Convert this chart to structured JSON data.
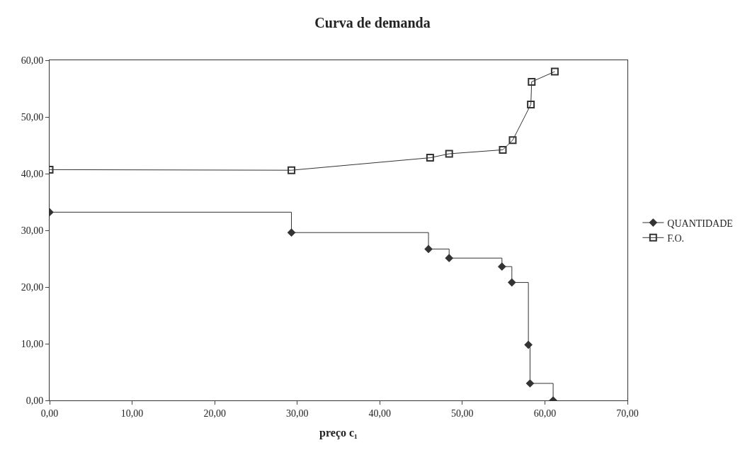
{
  "chart_data": {
    "type": "step",
    "title": "Curva de demanda",
    "xlabel": "preço c₁",
    "series": [
      {
        "name": "QUANTIDADE",
        "marker": "diamond",
        "color": "#333333",
        "x": [
          0,
          29.3,
          45.9,
          48.4,
          54.8,
          56.0,
          58.0,
          58.2,
          61.0
        ],
        "values": [
          33.2,
          29.6,
          26.7,
          25.1,
          23.6,
          20.8,
          9.8,
          3.0,
          0
        ]
      },
      {
        "name": "F.O.",
        "type": "line",
        "marker": "square",
        "color": "#333333",
        "x": [
          0,
          29.3,
          46.1,
          48.4,
          54.9,
          56.1,
          58.3,
          58.4,
          61.2
        ],
        "values": [
          40.7,
          40.6,
          42.8,
          43.5,
          44.2,
          45.9,
          52.2,
          56.2,
          58.0
        ]
      }
    ],
    "xlim": [
      0,
      70
    ],
    "ylim": [
      0,
      60
    ],
    "xticks": [
      {
        "value": 0,
        "label": "0,00"
      },
      {
        "value": 10,
        "label": "10,00"
      },
      {
        "value": 20,
        "label": "20,00"
      },
      {
        "value": 30,
        "label": "30,00"
      },
      {
        "value": 40,
        "label": "40,00"
      },
      {
        "value": 50,
        "label": "50,00"
      },
      {
        "value": 60,
        "label": "60,00"
      },
      {
        "value": 70,
        "label": "70,00"
      }
    ],
    "yticks": [
      {
        "value": 0,
        "label": "0,00"
      },
      {
        "value": 10,
        "label": "10,00"
      },
      {
        "value": 20,
        "label": "20,00"
      },
      {
        "value": 30,
        "label": "30,00"
      },
      {
        "value": 40,
        "label": "40,00"
      },
      {
        "value": 50,
        "label": "50,00"
      },
      {
        "value": 60,
        "label": "60,00"
      }
    ],
    "legend": "right"
  }
}
